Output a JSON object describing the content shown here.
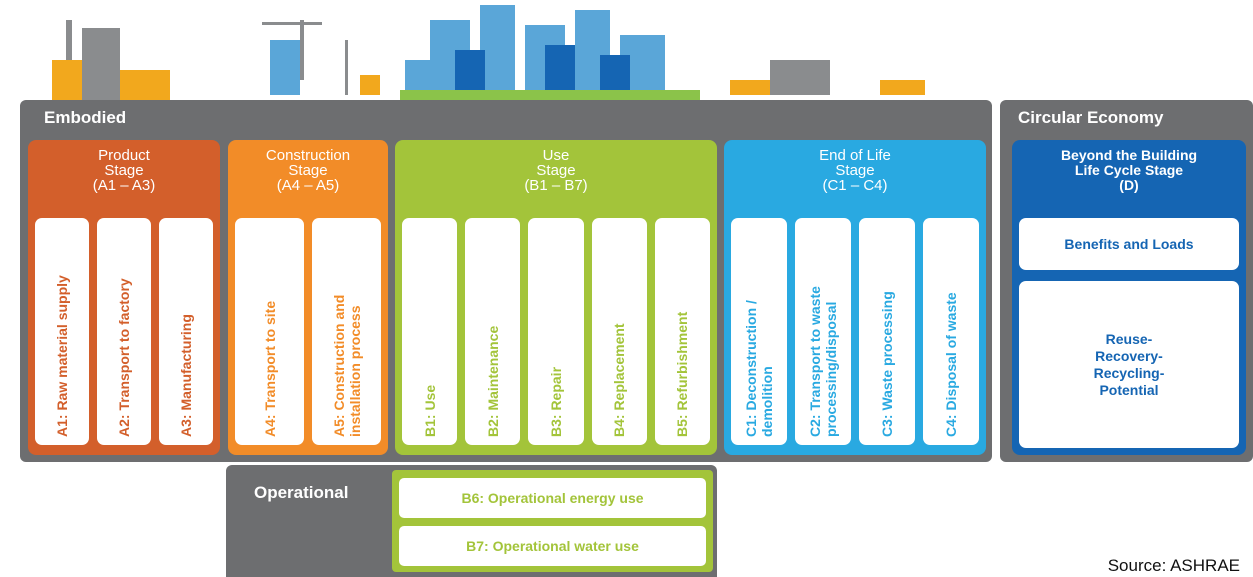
{
  "embodied": {
    "label": "Embodied",
    "stages": [
      {
        "title": [
          "Product",
          "Stage",
          "(A1 – A3)"
        ],
        "modules": [
          [
            "A1: Raw material supply"
          ],
          [
            "A2: Transport to factory"
          ],
          [
            "A3: Manufacturing"
          ]
        ]
      },
      {
        "title": [
          "Construction",
          "Stage",
          "(A4 – A5)"
        ],
        "modules": [
          [
            "A4: Transport to site"
          ],
          [
            "A5: Construction and",
            "installation process"
          ]
        ]
      },
      {
        "title": [
          "Use",
          "Stage",
          "(B1 – B7)"
        ],
        "modules": [
          [
            "B1: Use"
          ],
          [
            "B2: Maintenance"
          ],
          [
            "B3: Repair"
          ],
          [
            "B4: Replacement"
          ],
          [
            "B5: Refurbishment"
          ]
        ]
      },
      {
        "title": [
          "End of Life",
          "Stage",
          "(C1 – C4)"
        ],
        "modules": [
          [
            "C1: Deconstruction /",
            "demolition"
          ],
          [
            "C2: Transport to waste",
            "processing/disposal"
          ],
          [
            "C3: Waste processing"
          ],
          [
            "C4: Disposal of waste"
          ]
        ]
      }
    ]
  },
  "circular": {
    "label": "Circular Economy",
    "title": [
      "Beyond the Building",
      "Life Cycle Stage",
      "(D)"
    ],
    "boxes": [
      [
        "Benefits and Loads"
      ],
      [
        "Reuse-",
        "Recovery-",
        "Recycling-",
        "Potential"
      ]
    ]
  },
  "operational": {
    "label": "Operational",
    "items": [
      "B6: Operational energy use",
      "B7: Operational water use"
    ]
  },
  "source": "Source: ASHRAE"
}
